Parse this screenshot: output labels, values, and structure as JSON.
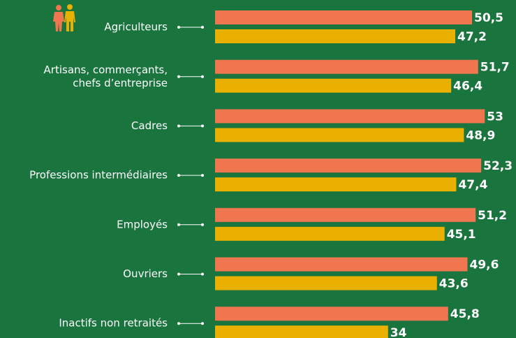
{
  "chart_data": {
    "type": "bar",
    "orientation": "horizontal",
    "categories": [
      "Agriculteurs",
      "Artisans, commerçants,\nchefs d’entreprise",
      "Cadres",
      "Professions intermédiaires",
      "Employés",
      "Ouvriers",
      "Inactifs non retraités"
    ],
    "series": [
      {
        "color": "#f07650",
        "values": [
          50.5,
          51.7,
          53,
          52.3,
          51.2,
          49.6,
          45.8
        ],
        "value_labels": [
          "50,5",
          "51,7",
          "53",
          "52,3",
          "51,2",
          "49,6",
          "45,8"
        ]
      },
      {
        "color": "#e9b000",
        "values": [
          47.2,
          46.4,
          48.9,
          47.4,
          45.1,
          43.6,
          34
        ],
        "value_labels": [
          "47,2",
          "46,4",
          "48,9",
          "47,4",
          "45,1",
          "43,6",
          "34"
        ]
      }
    ],
    "xlim": [
      0,
      59
    ]
  }
}
